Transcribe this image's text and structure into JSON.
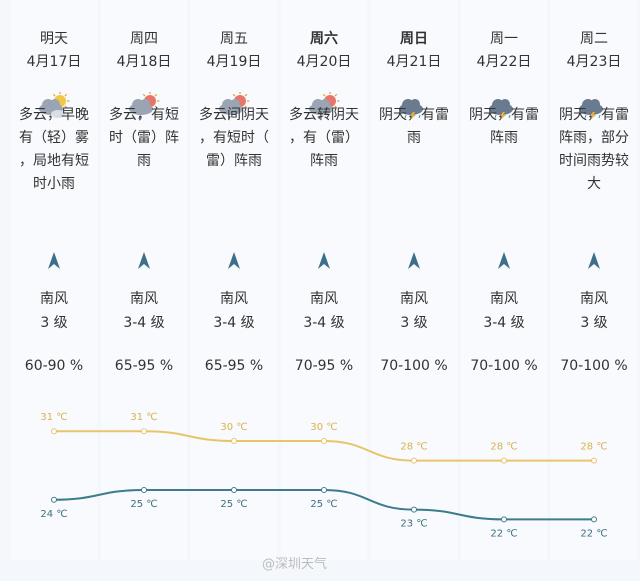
{
  "days": [
    {
      "name": "明天",
      "date": "4月17日",
      "icon": "partly-cloudy-icon",
      "desc": "多云，早晚有（轻）雾，局地有短时小雨",
      "wind_dir": "南风",
      "wind_level": "3 级",
      "humidity": "60-90 %",
      "high": 31,
      "low": 24,
      "bold": false
    },
    {
      "name": "周四",
      "date": "4月18日",
      "icon": "cloudy-shower-icon",
      "desc": "多云，有短时（雷）阵雨",
      "wind_dir": "南风",
      "wind_level": "3-4 级",
      "humidity": "65-95 %",
      "high": 31,
      "low": 25,
      "bold": false
    },
    {
      "name": "周五",
      "date": "4月19日",
      "icon": "cloudy-shower-icon",
      "desc": "多云间阴天，有短时（雷）阵雨",
      "wind_dir": "南风",
      "wind_level": "3-4 级",
      "humidity": "65-95 %",
      "high": 30,
      "low": 25,
      "bold": false
    },
    {
      "name": "周六",
      "date": "4月20日",
      "icon": "cloudy-shower-icon",
      "desc": "多云转阴天，有（雷）阵雨",
      "wind_dir": "南风",
      "wind_level": "3-4 级",
      "humidity": "70-95 %",
      "high": 30,
      "low": 25,
      "bold": true
    },
    {
      "name": "周日",
      "date": "4月21日",
      "icon": "thunderstorm-icon",
      "desc": "阴天，有雷雨",
      "wind_dir": "南风",
      "wind_level": "3 级",
      "humidity": "70-100 %",
      "high": 28,
      "low": 23,
      "bold": true
    },
    {
      "name": "周一",
      "date": "4月22日",
      "icon": "thunderstorm-icon",
      "desc": "阴天，有雷阵雨",
      "wind_dir": "南风",
      "wind_level": "3-4 级",
      "humidity": "70-100 %",
      "high": 28,
      "low": 22,
      "bold": false
    },
    {
      "name": "周二",
      "date": "4月23日",
      "icon": "thunderstorm-icon",
      "desc": "阴天，有雷阵雨，部分时间雨势较大",
      "wind_dir": "南风",
      "wind_level": "3 级",
      "humidity": "70-100 %",
      "high": 28,
      "low": 22,
      "bold": false
    }
  ],
  "temp_unit": "℃",
  "colors": {
    "high": "#e8c56a",
    "low": "#3d7c8c",
    "high_text": "#d9b24e",
    "low_text": "#3d6f7c"
  },
  "watermark": "@深圳天气"
}
